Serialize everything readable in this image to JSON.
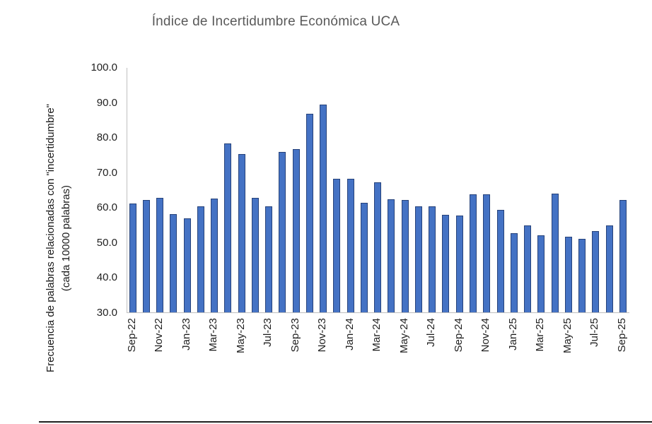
{
  "chart": {
    "title": "Índice de Incertidumbre Económica UCA",
    "y_axis": {
      "line1": "Frecuencia de palabras relacionadas con \"incertidumbre\"",
      "line2": "(cada 10000 palabras)"
    }
  },
  "chart_data": {
    "type": "bar",
    "title": "Índice de Incertidumbre Económica UCA",
    "xlabel": "",
    "ylabel": "Frecuencia de palabras relacionadas con \"incertidumbre\" (cada 10000 palabras)",
    "ylim": [
      30.0,
      100.0
    ],
    "y_ticks": [
      "100.0",
      "90.0",
      "80.0",
      "70.0",
      "60.0",
      "50.0",
      "40.0",
      "30.0"
    ],
    "y_tick_values": [
      100,
      90,
      80,
      70,
      60,
      50,
      40,
      30
    ],
    "grid": false,
    "legend": false,
    "x_tick_label_every": 2,
    "categories": [
      "Sep-22",
      "Oct-22",
      "Nov-22",
      "Dec-22",
      "Jan-23",
      "Feb-23",
      "Mar-23",
      "Apr-23",
      "May-23",
      "Jun-23",
      "Jul-23",
      "Aug-23",
      "Sep-23",
      "Oct-23",
      "Nov-23",
      "Dec-23",
      "Jan-24",
      "Feb-24",
      "Mar-24",
      "Apr-24",
      "May-24",
      "Jun-24",
      "Jul-24",
      "Aug-24",
      "Sep-24",
      "Oct-24",
      "Nov-24",
      "Dec-24",
      "Jan-25",
      "Feb-25",
      "Mar-25",
      "Apr-25",
      "May-25",
      "Jun-25",
      "Jul-25",
      "Aug-25",
      "Sep-25"
    ],
    "values": [
      61.1,
      62.1,
      62.6,
      58.0,
      56.9,
      60.2,
      62.5,
      78.3,
      75.1,
      62.6,
      60.2,
      75.8,
      76.6,
      86.7,
      89.3,
      68.1,
      68.2,
      61.2,
      67.1,
      62.2,
      62.1,
      60.3,
      60.2,
      57.8,
      57.6,
      63.6,
      63.7,
      59.3,
      52.6,
      54.8,
      52.0,
      63.9,
      51.5,
      50.9,
      53.1,
      54.9,
      62.0
    ],
    "visible_x_tick_labels": [
      "Sep-22",
      "Nov-22",
      "Jan-23",
      "Mar-23",
      "May-23",
      "Jul-23",
      "Sep-23",
      "Nov-23",
      "Jan-24",
      "Mar-24",
      "May-24",
      "Jul-24",
      "Sep-24",
      "Nov-24",
      "Jan-25",
      "Mar-25",
      "May-25",
      "Jul-25",
      "Sep-25"
    ],
    "colors": {
      "bar_fill": "#4472C4",
      "bar_border": "#26427A",
      "title_text": "#595959",
      "axis_line": "#BFBFBF",
      "tick_label_text": "#212121"
    }
  }
}
